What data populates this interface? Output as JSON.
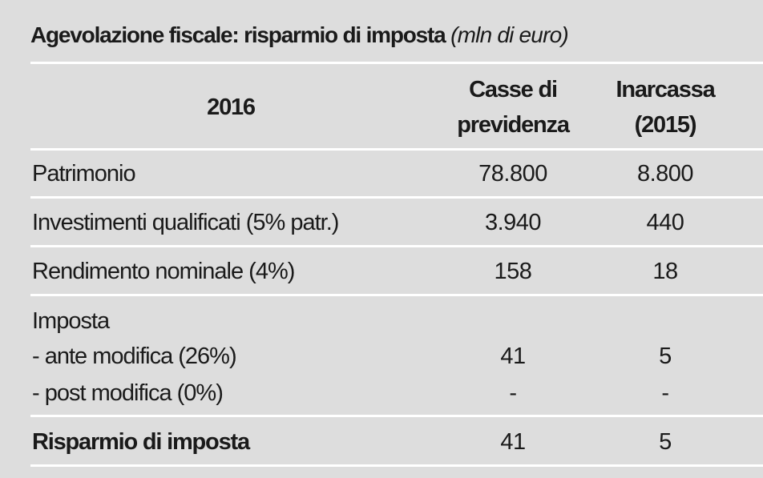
{
  "title": {
    "main": "Agevolazione fiscale: risparmio di imposta",
    "unit": "(mln di euro)"
  },
  "header": {
    "year": "2016",
    "col1": [
      "Casse di",
      "previdenza"
    ],
    "col2": [
      "Inarcassa",
      "(2015)"
    ]
  },
  "rows": [
    {
      "label": "Patrimonio",
      "v1": "78.800",
      "v2": "8.800"
    },
    {
      "label": "Investimenti qualificati (5% patr.)",
      "v1": "3.940",
      "v2": "440"
    },
    {
      "label": "Rendimento nominale (4%)",
      "v1": "158",
      "v2": "18"
    }
  ],
  "imposta": {
    "label": "Imposta",
    "ante": {
      "label": "- ante modifica (26%)",
      "v1": "41",
      "v2": "5"
    },
    "post": {
      "label": "- post modifica (0%)",
      "v1": "-",
      "v2": "-"
    }
  },
  "total": {
    "label": "Risparmio di imposta",
    "v1": "41",
    "v2": "5"
  }
}
